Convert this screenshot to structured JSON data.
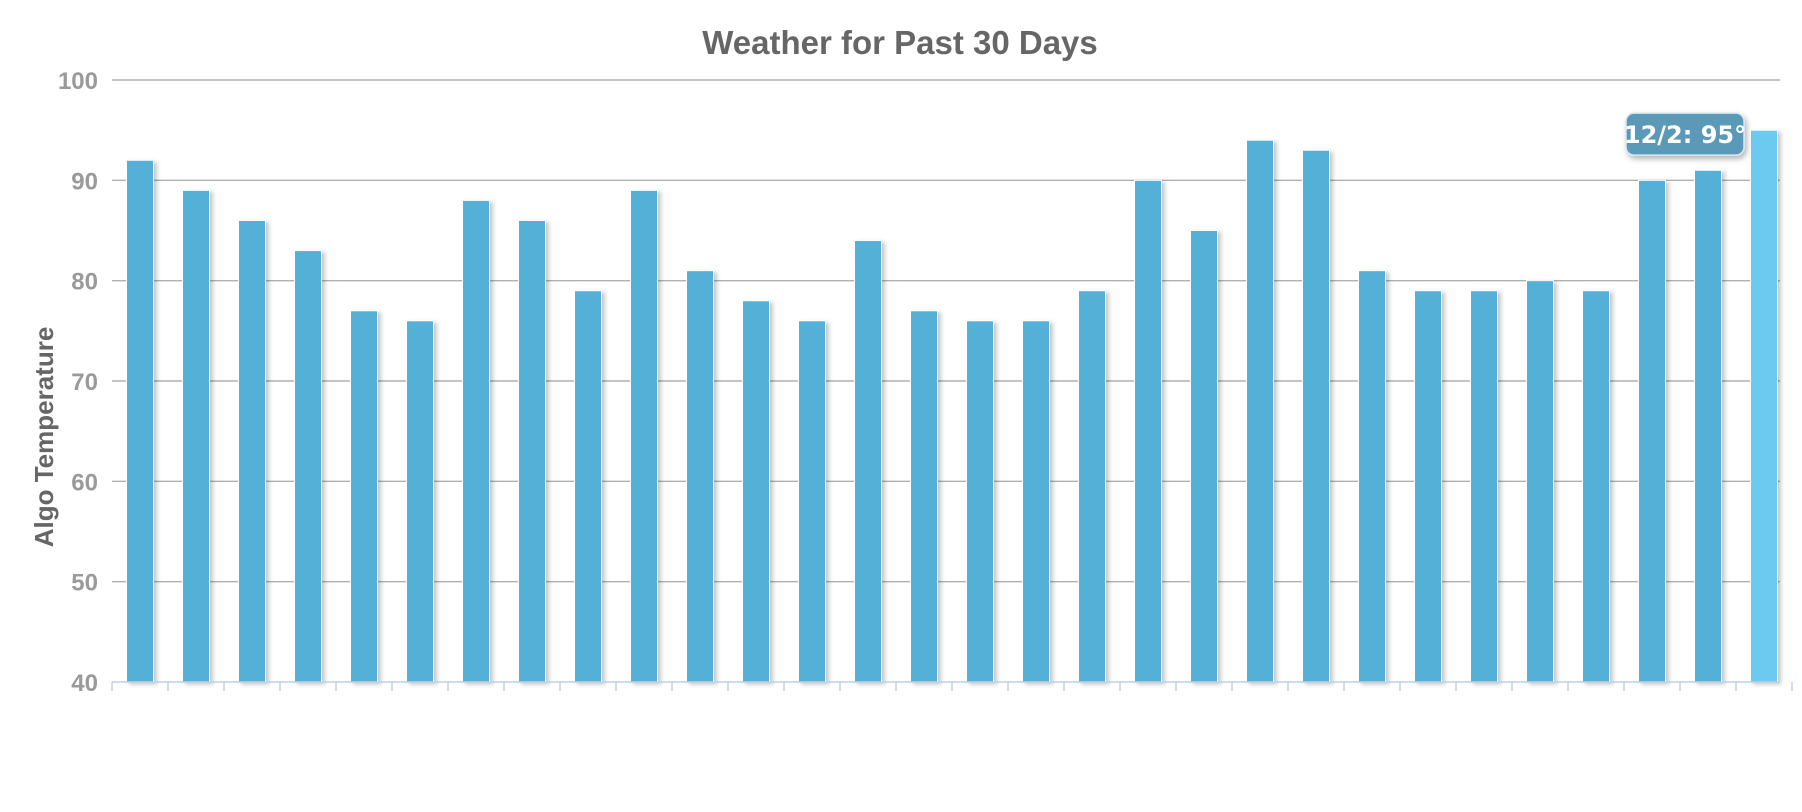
{
  "chart_data": {
    "type": "bar",
    "title": "Weather for Past 30 Days",
    "xlabel": "",
    "ylabel": "Algo Temperature",
    "ylim": [
      40,
      100
    ],
    "yticks": [
      40,
      50,
      60,
      70,
      80,
      90,
      100
    ],
    "grid": true,
    "legend": "none",
    "values": [
      92,
      89,
      86,
      83,
      77,
      76,
      88,
      86,
      79,
      89,
      81,
      78,
      76,
      84,
      77,
      76,
      76,
      79,
      90,
      85,
      94,
      93,
      81,
      79,
      79,
      80,
      79,
      90,
      91,
      95
    ],
    "highlighted_index": 29,
    "tooltip": {
      "text": "12/2: 95°"
    },
    "colors": {
      "bar": "#55b0d8",
      "bar_highlight": "#6ccaf0",
      "tooltip_bg": "#5a9ab8",
      "grid": "#b0b0b0",
      "tick_text": "#9a9a9a",
      "title_text": "#666666"
    }
  }
}
